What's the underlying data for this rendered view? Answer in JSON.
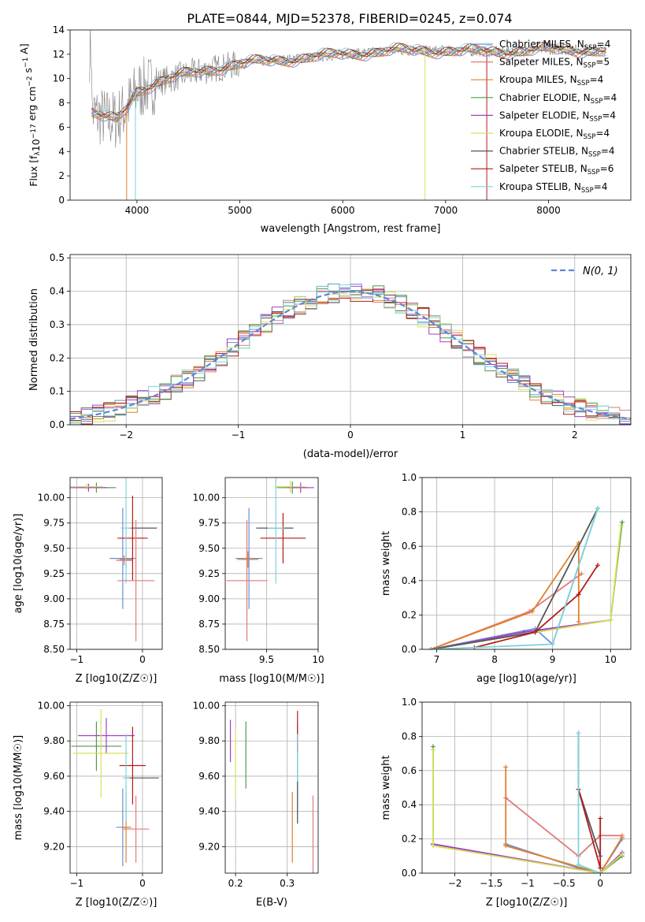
{
  "figure": {
    "title": "PLATE=0844, MJD=52378, FIBERID=0245, z=0.074"
  },
  "colors": {
    "Chabrier MILES": "#6a8fd6",
    "Salpeter MILES": "#e27a7a",
    "Kroupa MILES": "#e0802a",
    "Chabrier ELODIE": "#4d9a4d",
    "Salpeter ELODIE": "#a33fc6",
    "Kroupa ELODIE": "#d7e05a",
    "Chabrier STELIB": "#555555",
    "Salpeter STELIB": "#b31b1b",
    "Kroupa STELIB": "#7fd3dd",
    "data": "#808080"
  },
  "chart_data": [
    {
      "id": "spectrum",
      "type": "line",
      "title": "PLATE=0844, MJD=52378, FIBERID=0245, z=0.074",
      "xlabel": "wavelength [Angstrom, rest frame]",
      "ylabel_main": "Flux [f",
      "ylabel_sub": "λ",
      "ylabel_rest": "10",
      "ylabel_units": "erg cm",
      "ylabel_tail": " s",
      "ylabel_end": " A",
      "xlim": [
        3350,
        8800
      ],
      "ylim": [
        0,
        14
      ],
      "xticks": [
        4000,
        5000,
        6000,
        7000,
        8000
      ],
      "yticks": [
        0,
        2,
        4,
        6,
        8,
        10,
        12,
        14
      ],
      "legend_position": "right",
      "legend": [
        {
          "base": "Chabrier MILES, N",
          "sub": "SSP",
          "tail": "=4"
        },
        {
          "base": "Salpeter MILES, N",
          "sub": "SSP",
          "tail": "=5"
        },
        {
          "base": "Kroupa MILES, N",
          "sub": "SSP",
          "tail": "=4"
        },
        {
          "base": "Chabrier ELODIE, N",
          "sub": "SSP",
          "tail": "=4"
        },
        {
          "base": "Salpeter ELODIE, N",
          "sub": "SSP",
          "tail": "=4"
        },
        {
          "base": "Kroupa ELODIE, N",
          "sub": "SSP",
          "tail": "=4"
        },
        {
          "base": "Chabrier STELIB, N",
          "sub": "SSP",
          "tail": "=4"
        },
        {
          "base": "Salpeter STELIB, N",
          "sub": "SSP",
          "tail": "=6"
        },
        {
          "base": "Kroupa STELIB, N",
          "sub": "SSP",
          "tail": "=4"
        }
      ],
      "model_continuum": [
        [
          3560,
          7.2
        ],
        [
          3700,
          6.7
        ],
        [
          3800,
          6.6
        ],
        [
          3900,
          7.6
        ],
        [
          4000,
          9.0
        ],
        [
          4200,
          9.7
        ],
        [
          4500,
          10.4
        ],
        [
          4800,
          10.9
        ],
        [
          5000,
          11.2
        ],
        [
          5200,
          11.4
        ],
        [
          5500,
          11.6
        ],
        [
          6000,
          12.0
        ],
        [
          6500,
          12.3
        ],
        [
          7000,
          12.3
        ],
        [
          7500,
          12.2
        ],
        [
          8000,
          12.4
        ],
        [
          8500,
          12.3
        ]
      ]
    },
    {
      "id": "residuals",
      "type": "histogram",
      "xlabel": "(data-model)/error",
      "ylabel": "Normed distribution",
      "xlim": [
        -2.5,
        2.5
      ],
      "ylim": [
        0,
        0.51
      ],
      "xticks": [
        -2,
        -1,
        0,
        1,
        2
      ],
      "yticks": [
        0.0,
        0.1,
        0.2,
        0.3,
        0.4,
        0.5
      ],
      "legend": "N(0, 1)",
      "legend_position": "top-right",
      "bin_width": 0.1
    },
    {
      "id": "age-vs-Z",
      "type": "scatter",
      "xlabel": "Z [log10(Z/Z☉)]",
      "ylabel": "age [log10(age/yr)]",
      "xlim": [
        -1.1,
        0.3
      ],
      "ylim": [
        8.5,
        10.2
      ],
      "xticks": [
        -1,
        0
      ],
      "yticks": [
        8.5,
        8.75,
        9.0,
        9.25,
        9.5,
        9.75,
        10.0
      ],
      "points": [
        {
          "s": "Chabrier MILES",
          "x": -0.3,
          "y": 9.4,
          "xe": 0.2,
          "ye": 0.5
        },
        {
          "s": "Salpeter MILES",
          "x": -0.28,
          "y": 9.38,
          "xe": 0.12,
          "ye": 0.05
        },
        {
          "s": "Kroupa MILES",
          "x": -0.25,
          "y": 9.39,
          "xe": 0.1,
          "ye": 0.08
        },
        {
          "s": "Chabrier ELODIE",
          "x": -0.7,
          "y": 10.1,
          "xe": 0.3,
          "ye": 0.05
        },
        {
          "s": "Salpeter ELODIE",
          "x": -0.82,
          "y": 10.1,
          "xe": 0.28,
          "ye": 0.04
        },
        {
          "s": "Kroupa ELODIE",
          "x": -0.85,
          "y": 10.11,
          "xe": 0.25,
          "ye": 0.03
        },
        {
          "s": "Chabrier STELIB",
          "x": 0.0,
          "y": 9.7,
          "xe": 0.22,
          "ye": 0.0
        },
        {
          "s": "Salpeter STELIB",
          "x": -0.15,
          "y": 9.6,
          "xe": 0.23,
          "ye": 0.42
        },
        {
          "s": "Kroupa STELIB",
          "x": -0.25,
          "y": 9.7,
          "xe": 0.08,
          "ye": 0.55
        },
        {
          "s": "Salpeter MILES",
          "x": -0.1,
          "y": 9.18,
          "xe": 0.28,
          "ye": 0.6
        }
      ]
    },
    {
      "id": "age-vs-mass",
      "type": "scatter",
      "xlabel": "mass [log10(M/M☉)]",
      "xlim": [
        9.1,
        10.0
      ],
      "ylim": [
        8.5,
        10.2
      ],
      "xticks": [
        9.5,
        10.0
      ],
      "yticks": [
        8.5,
        8.75,
        9.0,
        9.25,
        9.5,
        9.75,
        10.0
      ],
      "points": [
        {
          "s": "Chabrier MILES",
          "x": 9.33,
          "y": 9.4,
          "xe": 0.13,
          "ye": 0.5
        },
        {
          "s": "Salpeter MILES",
          "x": 9.31,
          "y": 9.18,
          "xe": 0.2,
          "ye": 0.6
        },
        {
          "s": "Kroupa MILES",
          "x": 9.32,
          "y": 9.39,
          "xe": 0.1,
          "ye": 0.08
        },
        {
          "s": "Chabrier ELODIE",
          "x": 9.75,
          "y": 10.1,
          "xe": 0.15,
          "ye": 0.06
        },
        {
          "s": "Salpeter ELODIE",
          "x": 9.83,
          "y": 10.1,
          "xe": 0.13,
          "ye": 0.05
        },
        {
          "s": "Kroupa ELODIE",
          "x": 9.73,
          "y": 10.11,
          "xe": 0.15,
          "ye": 0.06
        },
        {
          "s": "Chabrier STELIB",
          "x": 9.58,
          "y": 9.7,
          "xe": 0.18,
          "ye": 0.0
        },
        {
          "s": "Salpeter STELIB",
          "x": 9.66,
          "y": 9.6,
          "xe": 0.22,
          "ye": 0.25
        },
        {
          "s": "Kroupa STELIB",
          "x": 9.59,
          "y": 9.7,
          "xe": 0.08,
          "ye": 0.55
        }
      ]
    },
    {
      "id": "weight-vs-age",
      "type": "line",
      "xlabel": "age [log10(age/yr)]",
      "ylabel": "mass weight",
      "xlim": [
        6.75,
        10.35
      ],
      "ylim": [
        0,
        1.0
      ],
      "xticks": [
        7,
        8,
        9,
        10
      ],
      "yticks": [
        0.0,
        0.2,
        0.4,
        0.6,
        0.8,
        1.0
      ],
      "series": [
        {
          "s": "Chabrier MILES",
          "pts": [
            [
              6.9,
              0.0
            ],
            [
              8.7,
              0.12
            ],
            [
              9.0,
              0.03
            ],
            [
              9.78,
              0.82
            ]
          ]
        },
        {
          "s": "Salpeter MILES",
          "pts": [
            [
              6.9,
              0.0
            ],
            [
              8.6,
              0.22
            ],
            [
              9.5,
              0.44
            ]
          ]
        },
        {
          "s": "Kroupa MILES",
          "pts": [
            [
              6.9,
              0.0
            ],
            [
              8.65,
              0.22
            ],
            [
              9.45,
              0.62
            ],
            [
              9.45,
              0.16
            ]
          ]
        },
        {
          "s": "Chabrier ELODIE",
          "pts": [
            [
              6.9,
              0.0
            ],
            [
              8.7,
              0.1
            ],
            [
              10.0,
              0.17
            ],
            [
              10.2,
              0.74
            ]
          ]
        },
        {
          "s": "Salpeter ELODIE",
          "pts": [
            [
              6.9,
              0.0
            ],
            [
              8.5,
              0.1
            ],
            [
              10.0,
              0.17
            ]
          ]
        },
        {
          "s": "Kroupa ELODIE",
          "pts": [
            [
              6.9,
              0.0
            ],
            [
              10.0,
              0.17
            ],
            [
              10.18,
              0.72
            ]
          ]
        },
        {
          "s": "Chabrier STELIB",
          "pts": [
            [
              6.9,
              0.0
            ],
            [
              8.7,
              0.1
            ],
            [
              9.78,
              0.82
            ]
          ]
        },
        {
          "s": "Salpeter STELIB",
          "pts": [
            [
              7.65,
              0.01
            ],
            [
              8.7,
              0.1
            ],
            [
              9.45,
              0.32
            ],
            [
              9.78,
              0.49
            ]
          ]
        },
        {
          "s": "Kroupa STELIB",
          "pts": [
            [
              6.9,
              0.0
            ],
            [
              9.0,
              0.03
            ],
            [
              9.78,
              0.82
            ]
          ]
        }
      ]
    },
    {
      "id": "mass-vs-Z",
      "type": "scatter",
      "xlabel": "Z [log10(Z/Z☉)]",
      "ylabel": "mass [log10(M/M☉)]",
      "xlim": [
        -1.1,
        0.3
      ],
      "ylim": [
        9.05,
        10.02
      ],
      "xticks": [
        -1,
        0
      ],
      "yticks": [
        9.2,
        9.4,
        9.6,
        9.8,
        10.0
      ],
      "points": [
        {
          "s": "Chabrier MILES",
          "x": -0.3,
          "y": 9.31,
          "xe": 0.1,
          "ye": 0.22
        },
        {
          "s": "Salpeter MILES",
          "x": -0.1,
          "y": 9.3,
          "xe": 0.2,
          "ye": 0.19
        },
        {
          "s": "Kroupa MILES",
          "x": -0.25,
          "y": 9.31,
          "xe": 0.08,
          "ye": 0.2
        },
        {
          "s": "Chabrier ELODIE",
          "x": -0.7,
          "y": 9.77,
          "xe": 0.38,
          "ye": 0.14
        },
        {
          "s": "Salpeter ELODIE",
          "x": -0.55,
          "y": 9.83,
          "xe": 0.43,
          "ye": 0.1
        },
        {
          "s": "Kroupa ELODIE",
          "x": -0.63,
          "y": 9.73,
          "xe": 0.42,
          "ye": 0.25
        },
        {
          "s": "Chabrier STELIB",
          "x": 0.0,
          "y": 9.59,
          "xe": 0.25,
          "ye": 0.0
        },
        {
          "s": "Salpeter STELIB",
          "x": -0.15,
          "y": 9.66,
          "xe": 0.2,
          "ye": 0.22
        },
        {
          "s": "Kroupa STELIB",
          "x": -0.25,
          "y": 9.59,
          "xe": 0.05,
          "ye": 0.25
        }
      ]
    },
    {
      "id": "mass-vs-EBV",
      "type": "scatter",
      "xlabel": "E(B-V)",
      "xlim": [
        0.18,
        0.36
      ],
      "ylim": [
        9.05,
        10.02
      ],
      "xticks": [
        0.2,
        0.3
      ],
      "yticks": [
        9.2,
        9.4,
        9.6,
        9.8,
        10.0
      ],
      "points": [
        {
          "s": "Salpeter ELODIE",
          "x": 0.19,
          "y": 9.8,
          "xe": 0.0,
          "ye": 0.12
        },
        {
          "s": "Kroupa ELODIE",
          "x": 0.2,
          "y": 9.67,
          "xe": 0.0,
          "ye": 0.19
        },
        {
          "s": "Chabrier ELODIE",
          "x": 0.22,
          "y": 9.72,
          "xe": 0.0,
          "ye": 0.19
        },
        {
          "s": "Kroupa MILES",
          "x": 0.31,
          "y": 9.31,
          "xe": 0.0,
          "ye": 0.2
        },
        {
          "s": "Chabrier MILES",
          "x": 0.32,
          "y": 9.65,
          "xe": 0.0,
          "ye": 0.25
        },
        {
          "s": "Salpeter STELIB",
          "x": 0.32,
          "y": 9.85,
          "xe": 0.0,
          "ye": 0.12
        },
        {
          "s": "Kroupa STELIB",
          "x": 0.32,
          "y": 9.59,
          "xe": 0.0,
          "ye": 0.25
        },
        {
          "s": "Chabrier STELIB",
          "x": 0.32,
          "y": 9.45,
          "xe": 0.0,
          "ye": 0.12
        },
        {
          "s": "Salpeter MILES",
          "x": 0.35,
          "y": 9.23,
          "xe": 0.0,
          "ye": 0.26
        }
      ]
    },
    {
      "id": "weight-vs-Z",
      "type": "line",
      "xlabel": "Z [log10(Z/Z☉)]",
      "ylabel": "mass weight",
      "xlim": [
        -2.45,
        0.42
      ],
      "ylim": [
        0,
        1.0
      ],
      "xticks": [
        -2.0,
        -1.5,
        -1.0,
        -0.5,
        0.0
      ],
      "yticks": [
        0.0,
        0.2,
        0.4,
        0.6,
        0.8,
        1.0
      ],
      "series": [
        {
          "s": "Chabrier MILES",
          "pts": [
            [
              -1.3,
              0.17
            ],
            [
              -0.3,
              0.03
            ],
            [
              0.0,
              0.0
            ],
            [
              0.3,
              0.2
            ]
          ]
        },
        {
          "s": "Salpeter MILES",
          "pts": [
            [
              -1.3,
              0.44
            ],
            [
              -0.3,
              0.1
            ],
            [
              0.0,
              0.22
            ],
            [
              0.3,
              0.22
            ]
          ]
        },
        {
          "s": "Kroupa MILES",
          "pts": [
            [
              -1.3,
              0.62
            ],
            [
              -1.3,
              0.16
            ],
            [
              0.0,
              0.0
            ],
            [
              0.3,
              0.21
            ]
          ]
        },
        {
          "s": "Chabrier ELODIE",
          "pts": [
            [
              -2.3,
              0.74
            ],
            [
              -2.3,
              0.17
            ],
            [
              0.0,
              0.0
            ],
            [
              0.3,
              0.1
            ]
          ]
        },
        {
          "s": "Salpeter ELODIE",
          "pts": [
            [
              -2.3,
              0.17
            ],
            [
              0.0,
              0.0
            ],
            [
              0.3,
              0.12
            ]
          ]
        },
        {
          "s": "Kroupa ELODIE",
          "pts": [
            [
              -2.3,
              0.72
            ],
            [
              -2.3,
              0.16
            ],
            [
              0.0,
              0.0
            ],
            [
              0.3,
              0.11
            ]
          ]
        },
        {
          "s": "Chabrier STELIB",
          "pts": [
            [
              -0.3,
              0.82
            ],
            [
              -0.3,
              0.49
            ],
            [
              0.0,
              0.1
            ]
          ]
        },
        {
          "s": "Salpeter STELIB",
          "pts": [
            [
              -0.3,
              0.49
            ],
            [
              0.0,
              0.03
            ],
            [
              0.0,
              0.32
            ]
          ]
        },
        {
          "s": "Kroupa STELIB",
          "pts": [
            [
              -0.3,
              0.82
            ],
            [
              -0.3,
              0.05
            ],
            [
              0.0,
              0.0
            ]
          ]
        }
      ]
    }
  ]
}
